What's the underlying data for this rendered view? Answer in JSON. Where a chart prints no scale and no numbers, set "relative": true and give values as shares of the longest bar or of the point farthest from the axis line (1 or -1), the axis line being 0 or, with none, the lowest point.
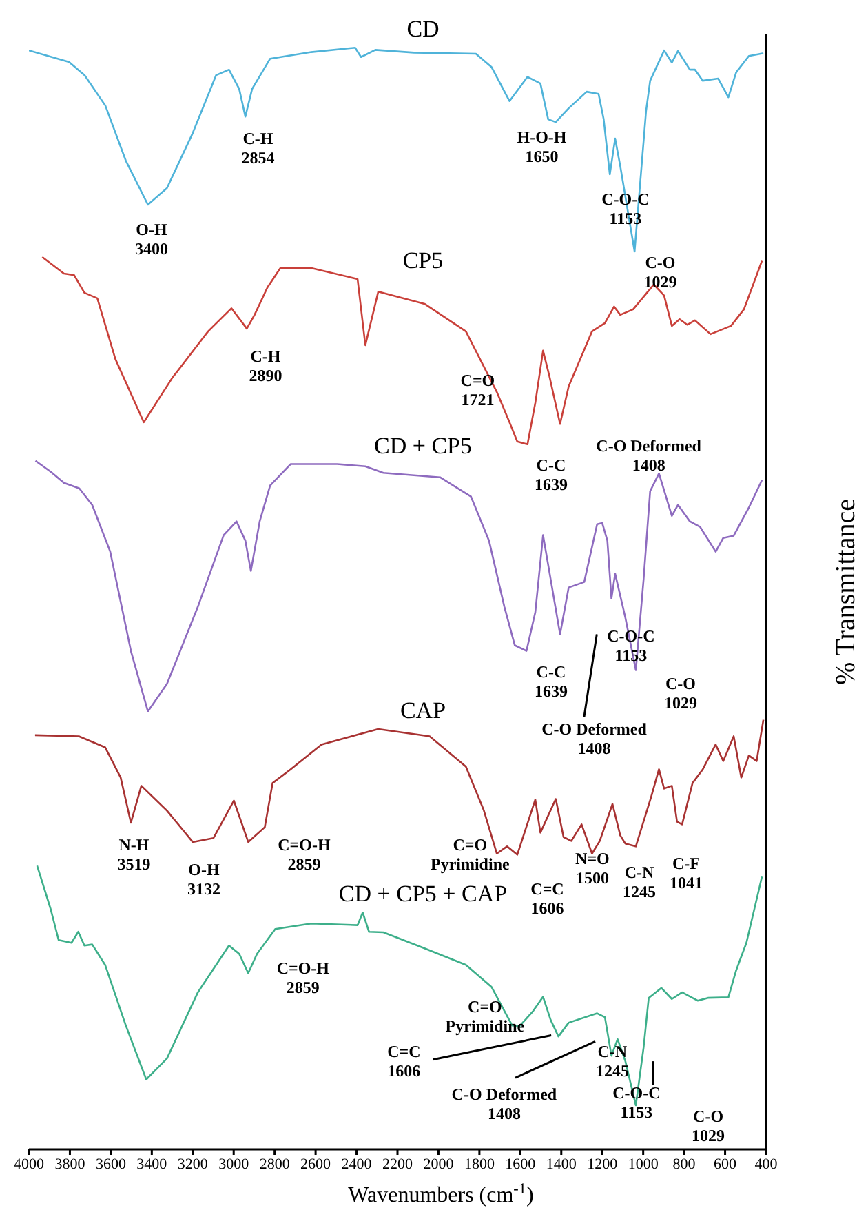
{
  "chart_data": {
    "type": "line",
    "relative": true,
    "xlabel": "Wavenumbers (cm$^{-1}$)",
    "ylabel": "% Transmittance",
    "tick_labels": "x",
    "xlim": [
      4000,
      400
    ],
    "xticks": [
      4000,
      3800,
      3600,
      3400,
      3200,
      3000,
      2800,
      2600,
      2400,
      2200,
      2000,
      1800,
      1600,
      1400,
      1200,
      1000,
      800,
      600,
      400
    ],
    "series": [
      {
        "name": "CD",
        "color": "#4fb3d9",
        "x": [
          4000,
          3804,
          3728,
          3627,
          3527,
          3419,
          3326,
          3200,
          3086,
          3023,
          2973,
          2943,
          2910,
          2822,
          2621,
          2407,
          2378,
          2308,
          2119,
          1817,
          1741,
          1653,
          1565,
          1502,
          1464,
          1427,
          1364,
          1276,
          1218,
          1193,
          1163,
          1137,
          1112,
          1042,
          986,
          966,
          898,
          860,
          830,
          772,
          747,
          709,
          634,
          584,
          546,
          484,
          413
        ],
        "values": [
          0.9975,
          0.987,
          0.975,
          0.9475,
          0.8975,
          0.8575,
          0.8725,
          0.9225,
          0.975,
          0.98,
          0.9625,
          0.9375,
          0.9625,
          0.99,
          0.996,
          1,
          0.9915,
          0.998,
          0.9955,
          0.9945,
          0.9825,
          0.9515,
          0.9735,
          0.9675,
          0.935,
          0.9325,
          0.945,
          0.96,
          0.958,
          0.935,
          0.885,
          0.9175,
          0.8925,
          0.815,
          0.9425,
          0.97,
          0.9975,
          0.9865,
          0.997,
          0.98,
          0.98,
          0.97,
          0.972,
          0.955,
          0.9775,
          0.9925,
          0.995
        ]
      },
      {
        "name": "CP5",
        "color": "#c9403a",
        "x": [
          3935,
          3829,
          3779,
          3729,
          3666,
          3578,
          3439,
          3301,
          3125,
          3011,
          2936,
          2898,
          2835,
          2772,
          2621,
          2395,
          2357,
          2294,
          2068,
          1866,
          1715,
          1653,
          1615,
          1565,
          1527,
          1489,
          1459,
          1406,
          1364,
          1250,
          1187,
          1142,
          1112,
          1049,
          948,
          898,
          860,
          822,
          785,
          747,
          671,
          571,
          508,
          458,
          420
        ],
        "values": [
          0.81,
          0.795,
          0.7935,
          0.7775,
          0.7725,
          0.7175,
          0.66,
          0.7,
          0.7425,
          0.7635,
          0.745,
          0.7575,
          0.7825,
          0.8,
          0.8,
          0.79,
          0.73,
          0.7785,
          0.7675,
          0.7425,
          0.6875,
          0.66,
          0.6425,
          0.64,
          0.6775,
          0.725,
          0.7025,
          0.6585,
          0.6925,
          0.7425,
          0.75,
          0.765,
          0.7575,
          0.7625,
          0.785,
          0.775,
          0.7475,
          0.7535,
          0.7485,
          0.7525,
          0.74,
          0.7475,
          0.7625,
          0.7875,
          0.8065
        ]
      },
      {
        "name": "CD + CP5",
        "color": "#8e6bbf",
        "x": [
          3968,
          3893,
          3829,
          3754,
          3691,
          3603,
          3502,
          3419,
          3326,
          3175,
          3049,
          2986,
          2943,
          2916,
          2873,
          2822,
          2722,
          2495,
          2357,
          2269,
          1992,
          1841,
          1753,
          1678,
          1627,
          1570,
          1527,
          1489,
          1452,
          1406,
          1364,
          1288,
          1225,
          1200,
          1175,
          1155,
          1137,
          1087,
          1036,
          998,
          966,
          923,
          860,
          830,
          772,
          722,
          646,
          609,
          558,
          484,
          420
        ],
        "values": [
          0.625,
          0.615,
          0.605,
          0.6,
          0.585,
          0.5425,
          0.4525,
          0.3975,
          0.4225,
          0.4925,
          0.5575,
          0.57,
          0.5525,
          0.525,
          0.57,
          0.6025,
          0.622,
          0.622,
          0.62,
          0.614,
          0.61,
          0.5925,
          0.5525,
          0.4925,
          0.4575,
          0.4525,
          0.4875,
          0.5575,
          0.5175,
          0.4675,
          0.51,
          0.515,
          0.5675,
          0.5685,
          0.5525,
          0.5,
          0.5225,
          0.4825,
          0.435,
          0.5175,
          0.5975,
          0.6135,
          0.575,
          0.585,
          0.57,
          0.565,
          0.5425,
          0.555,
          0.557,
          0.5825,
          0.6075
        ]
      },
      {
        "name": "CAP",
        "color": "#a83232",
        "x": [
          3970,
          3756,
          3628,
          3552,
          3502,
          3451,
          3326,
          3200,
          3099,
          2999,
          2929,
          2848,
          2810,
          2722,
          2571,
          2294,
          2043,
          1866,
          1778,
          1715,
          1665,
          1615,
          1527,
          1502,
          1427,
          1389,
          1351,
          1301,
          1250,
          1212,
          1150,
          1112,
          1087,
          1036,
          961,
          923,
          898,
          860,
          835,
          810,
          759,
          709,
          646,
          609,
          558,
          521,
          484,
          446,
          413
        ],
        "values": [
          0.376,
          0.375,
          0.365,
          0.3375,
          0.2965,
          0.33,
          0.3075,
          0.279,
          0.2825,
          0.3165,
          0.279,
          0.2925,
          0.3325,
          0.345,
          0.3675,
          0.3815,
          0.375,
          0.3475,
          0.3075,
          0.2685,
          0.275,
          0.2675,
          0.3175,
          0.2875,
          0.318,
          0.2835,
          0.28,
          0.295,
          0.2685,
          0.28,
          0.3135,
          0.285,
          0.2775,
          0.275,
          0.32,
          0.345,
          0.3275,
          0.33,
          0.2975,
          0.295,
          0.3325,
          0.345,
          0.3675,
          0.3525,
          0.375,
          0.3375,
          0.3575,
          0.3525,
          0.39
        ]
      },
      {
        "name": "CD + CP5 + CAP",
        "color": "#3daf8a",
        "x": [
          3960,
          3893,
          3855,
          3792,
          3759,
          3729,
          3691,
          3628,
          3527,
          3427,
          3326,
          3175,
          3023,
          2973,
          2929,
          2886,
          2797,
          2621,
          2395,
          2370,
          2339,
          2269,
          2068,
          1866,
          1741,
          1640,
          1603,
          1540,
          1489,
          1452,
          1414,
          1364,
          1225,
          1187,
          1155,
          1125,
          1087,
          1036,
          998,
          973,
          911,
          860,
          810,
          734,
          684,
          584,
          546,
          496,
          458,
          420
        ],
        "values": [
          0.2575,
          0.2175,
          0.19,
          0.1875,
          0.1975,
          0.185,
          0.186,
          0.1675,
          0.1125,
          0.0635,
          0.0825,
          0.1425,
          0.185,
          0.1775,
          0.16,
          0.1775,
          0.2,
          0.205,
          0.2035,
          0.215,
          0.1975,
          0.197,
          0.1825,
          0.1675,
          0.1475,
          0.1125,
          0.112,
          0.125,
          0.1385,
          0.1175,
          0.1025,
          0.115,
          0.1235,
          0.12,
          0.085,
          0.1,
          0.08,
          0.04,
          0.0925,
          0.1375,
          0.1465,
          0.1365,
          0.1425,
          0.135,
          0.1375,
          0.138,
          0.1625,
          0.1875,
          0.2175,
          0.2475
        ]
      }
    ],
    "annotations": [
      "O-H\n3400",
      "C-H\n2854",
      "H-O-H\n1650",
      "C-O-C\n1153",
      "C-O\n1029",
      "C-H\n2890",
      "C=O\n1721",
      "C-C\n1639",
      "C-O Deformed\n1408",
      "C-C\n1639",
      "C-O-C\n1153",
      "C-O\n1029",
      "C-O Deformed\n1408",
      "N-H\n3519",
      "O-H\n3132",
      "C=O-H\n2859",
      "C=O\nPyrimidine",
      "C=C\n1606",
      "N=O\n1500",
      "C-N\n1245",
      "C-F\n1041",
      "C=O-H\n2859",
      "C=O\nPyrimidine",
      "C=C\n1606",
      "C-O Deformed\n1408",
      "C-N\n1245",
      "C-O-C\n1153",
      "C-O\n1029"
    ]
  }
}
